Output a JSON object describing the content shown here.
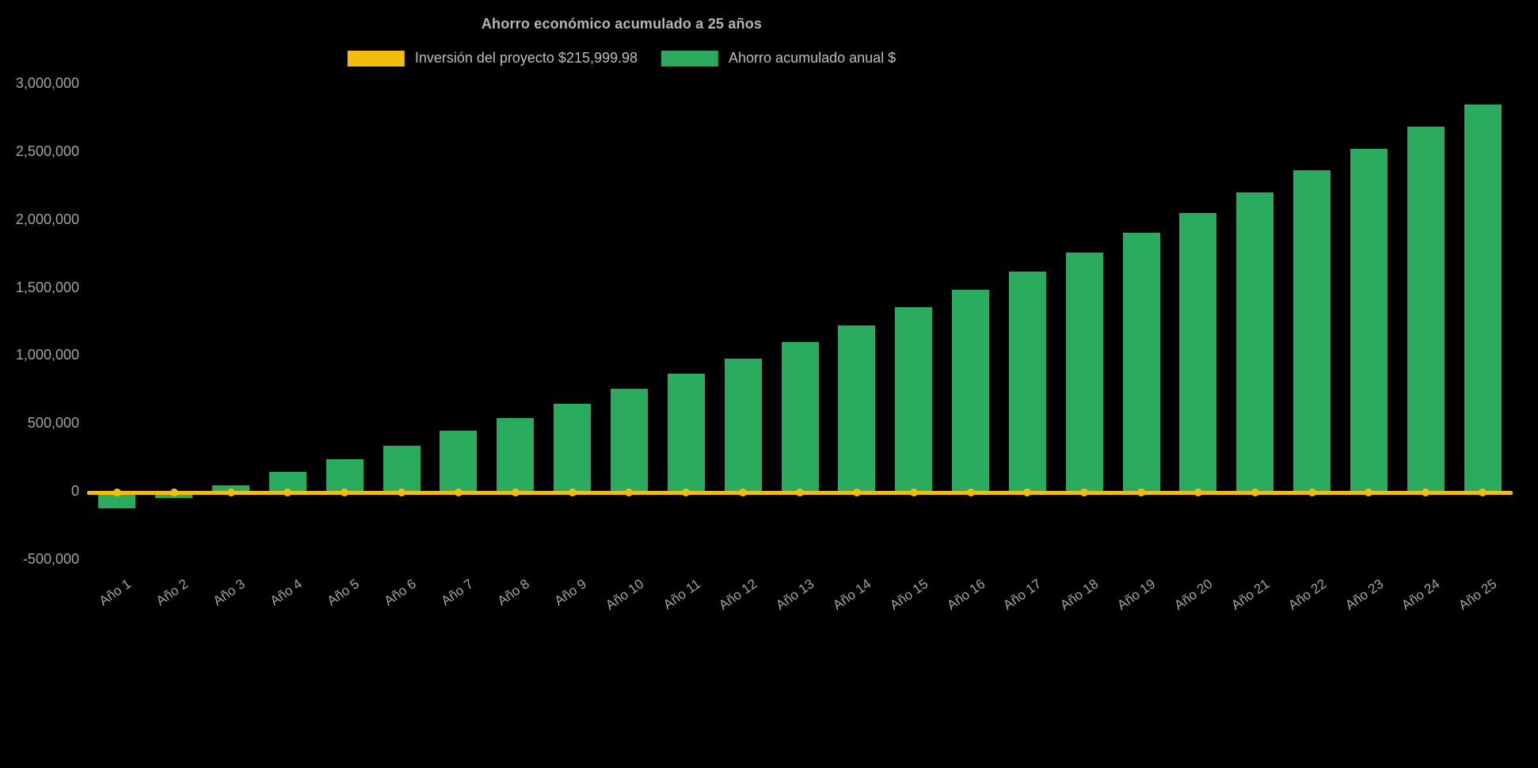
{
  "title": "Ahorro económico acumulado a 25 años",
  "colors": {
    "background": "#000000",
    "bar": "#2bab5e",
    "line": "#f3bd0f",
    "title_text": "#b6b6b6",
    "legend_text": "#bdbdbd",
    "axis_text": "#a3a3a3"
  },
  "legend": [
    {
      "id": "inversion-proyecto",
      "label": "Inversión del proyecto $215,999.98",
      "color": "#f3bd0f"
    },
    {
      "id": "ahorro-acumulado",
      "label": "Ahorro acumulado anual $",
      "color": "#2bab5e"
    }
  ],
  "chart_data": {
    "type": "bar",
    "title": "Ahorro económico acumulado a 25 años",
    "categories": [
      "Año 1",
      "Año 2",
      "Año 3",
      "Año 4",
      "Año 5",
      "Año 6",
      "Año 7",
      "Año 8",
      "Año 9",
      "Año 10",
      "Año 11",
      "Año 12",
      "Año 13",
      "Año 14",
      "Año 15",
      "Año 16",
      "Año 17",
      "Año 18",
      "Año 19",
      "Año 20",
      "Año 21",
      "Año 22",
      "Año 23",
      "Año 24",
      "Año 25"
    ],
    "series": [
      {
        "name": "Ahorro acumulado anual $",
        "type": "bar",
        "color": "#2bab5e",
        "values": [
          -130000,
          -55000,
          40000,
          140000,
          235000,
          330000,
          440000,
          535000,
          640000,
          750000,
          860000,
          975000,
          1095000,
          1220000,
          1350000,
          1480000,
          1615000,
          1755000,
          1900000,
          2045000,
          2195000,
          2360000,
          2515000,
          2680000,
          2845000
        ]
      },
      {
        "name": "Inversión del proyecto $215,999.98",
        "type": "line",
        "color": "#f3bd0f",
        "values": [
          0,
          0,
          0,
          0,
          0,
          0,
          0,
          0,
          0,
          0,
          0,
          0,
          0,
          0,
          0,
          0,
          0,
          0,
          0,
          0,
          0,
          0,
          0,
          0,
          0
        ]
      }
    ],
    "y_ticks": [
      -500000,
      0,
      500000,
      1000000,
      1500000,
      2000000,
      2500000,
      3000000
    ],
    "y_tick_labels": [
      "-500,000",
      "0",
      "500,000",
      "1,000,000",
      "1,500,000",
      "2,000,000",
      "2,500,000",
      "3,000,000"
    ],
    "ylim": [
      -650000,
      3100000
    ],
    "xlabel": "",
    "ylabel": "",
    "grid": false,
    "legend_position": "top",
    "x_label_rotation": -35
  }
}
